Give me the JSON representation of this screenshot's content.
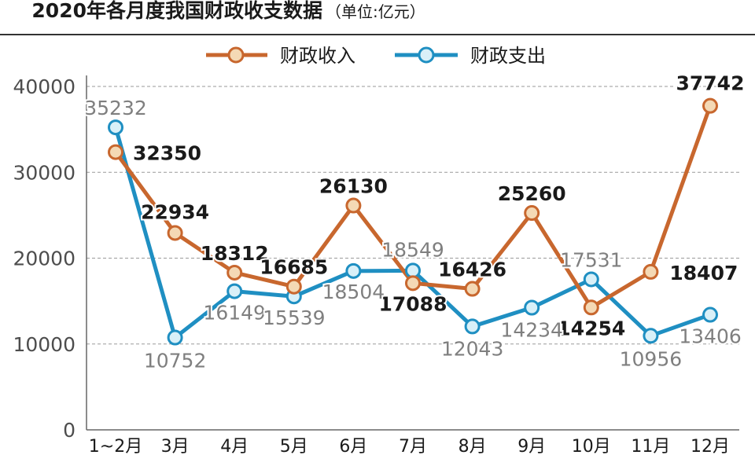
{
  "chart_data": {
    "type": "line",
    "title": "2020年各月度我国财政收支数据",
    "subtitle": "（单位:亿元）",
    "categories": [
      "1~2月",
      "3月",
      "4月",
      "5月",
      "6月",
      "7月",
      "8月",
      "9月",
      "10月",
      "11月",
      "12月"
    ],
    "ylim": [
      0,
      40000
    ],
    "yticks": [
      0,
      10000,
      20000,
      30000,
      40000
    ],
    "legend_position": "top-center",
    "grid": "dashed horizontal",
    "series": [
      {
        "name": "财政收入",
        "color": "#c8672e",
        "label_color": "#1a1a1a",
        "values": [
          32350,
          22934,
          18312,
          16685,
          26130,
          17088,
          16426,
          25260,
          14254,
          18407,
          37742
        ]
      },
      {
        "name": "财政支出",
        "color": "#1f8fc2",
        "label_color": "#7f7f7f",
        "values": [
          35232,
          10752,
          16149,
          15539,
          18504,
          18549,
          12043,
          14234,
          17531,
          10956,
          13406
        ]
      }
    ]
  }
}
